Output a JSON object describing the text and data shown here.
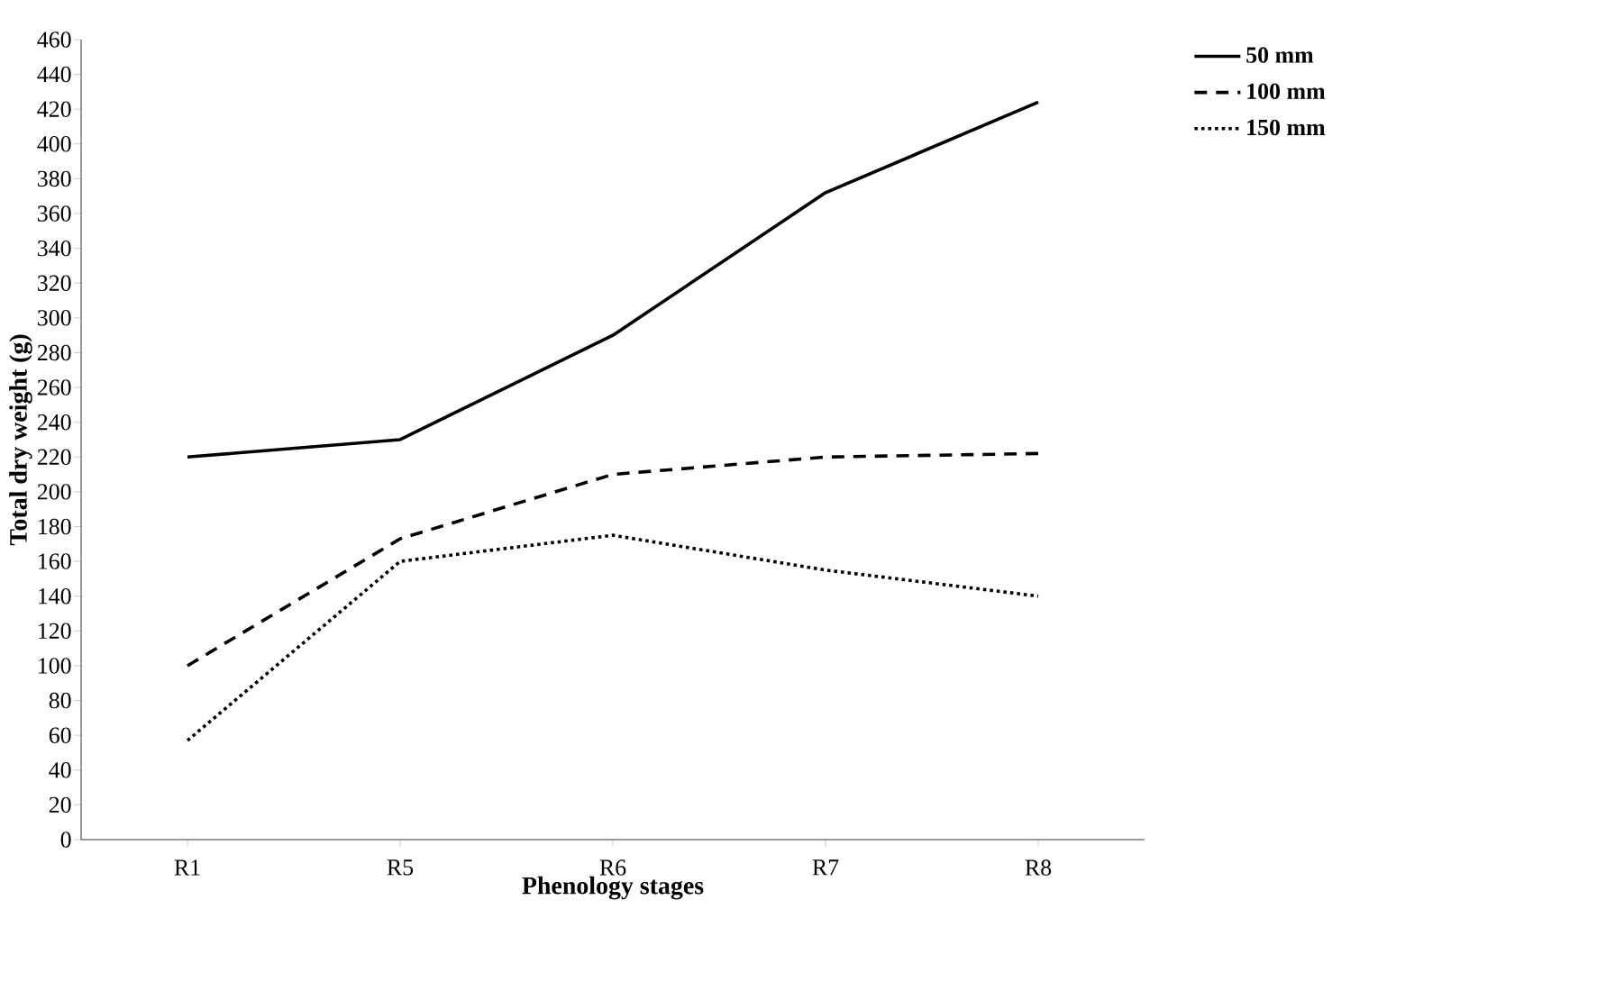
{
  "chart_data": {
    "type": "line",
    "xlabel": "Phenology stages",
    "ylabel": "Total dry weight (g)",
    "categories": [
      "R1",
      "R5",
      "R6",
      "R7",
      "R8"
    ],
    "series": [
      {
        "name": "50 mm",
        "color": "#000000",
        "line_style": "solid",
        "values": [
          220,
          230,
          290,
          372,
          424
        ]
      },
      {
        "name": "100 mm",
        "color": "#000000",
        "line_style": "dashed",
        "values": [
          100,
          173,
          210,
          220,
          222
        ]
      },
      {
        "name": "150 mm",
        "color": "#000000",
        "line_style": "dotted",
        "values": [
          57,
          160,
          175,
          155,
          140
        ]
      }
    ],
    "ylim": [
      0,
      460
    ],
    "yticks": [
      0,
      20,
      40,
      60,
      80,
      100,
      120,
      140,
      160,
      180,
      200,
      220,
      240,
      260,
      280,
      300,
      320,
      340,
      360,
      380,
      400,
      420,
      440,
      460
    ],
    "grid": false,
    "legend": "top right",
    "marker": "none"
  }
}
